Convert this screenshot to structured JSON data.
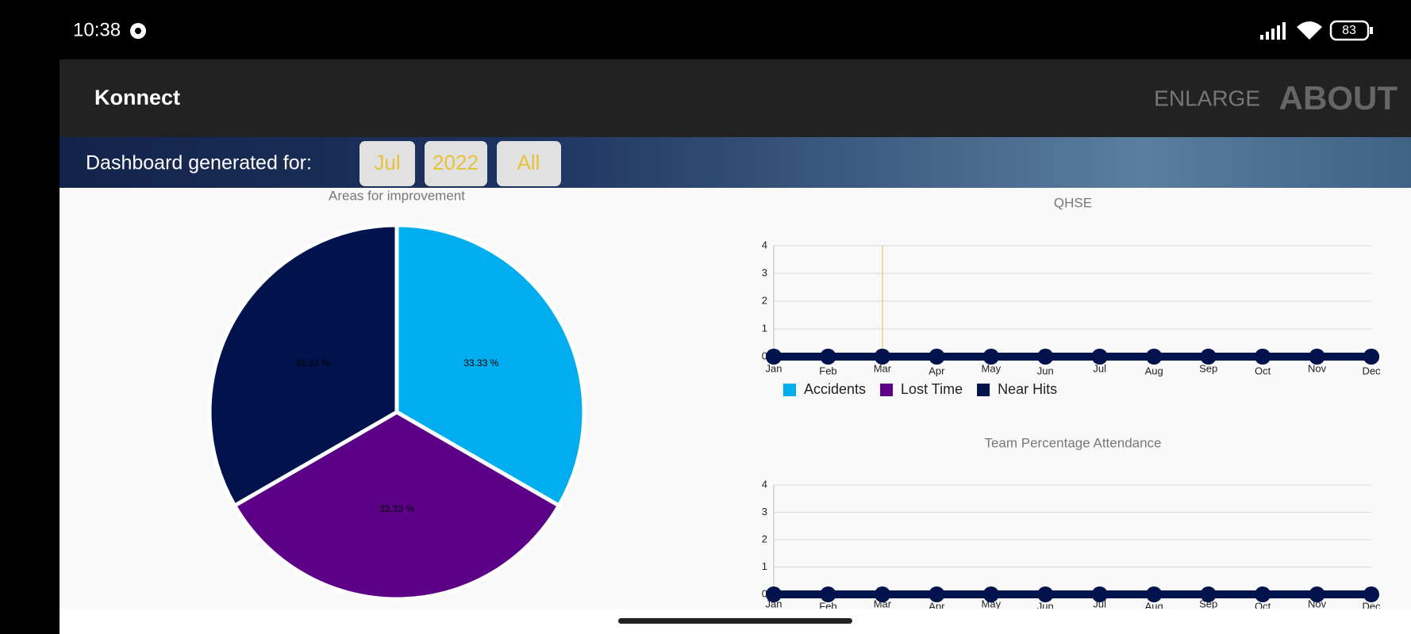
{
  "status_bar": {
    "time": "10:38",
    "battery": "83"
  },
  "app_bar": {
    "title": "Konnect",
    "actions": [
      "ENLARGE",
      "ABOUT"
    ]
  },
  "filter_bar": {
    "label": "Dashboard generated for:",
    "buttons": [
      "Jul",
      "2022",
      "All"
    ]
  },
  "chart_data": [
    {
      "type": "pie",
      "title": "Areas for improvement",
      "values": [
        33.33,
        33.33,
        33.33
      ],
      "value_labels": [
        "33.33 %",
        "33.33 %",
        "33.33 %"
      ],
      "colors": [
        "#00aeef",
        "#5c0087",
        "#00134d"
      ]
    },
    {
      "type": "line",
      "title": "QHSE",
      "categories": [
        "Jan",
        "Feb",
        "Mar",
        "Apr",
        "May",
        "Jun",
        "Jul",
        "Aug",
        "Sep",
        "Oct",
        "Nov",
        "Dec"
      ],
      "series": [
        {
          "name": "Accidents",
          "color": "#00aeef",
          "values": [
            0,
            0,
            0,
            0,
            0,
            0,
            0,
            0,
            0,
            0,
            0,
            0
          ]
        },
        {
          "name": "Lost Time",
          "color": "#5c0087",
          "values": [
            0,
            0,
            0,
            0,
            0,
            0,
            0,
            0,
            0,
            0,
            0,
            0
          ]
        },
        {
          "name": "Near Hits",
          "color": "#00134d",
          "values": [
            0,
            0,
            0,
            0,
            0,
            0,
            0,
            0,
            0,
            0,
            0,
            0
          ]
        }
      ],
      "ylim": [
        0,
        4
      ],
      "yticks": [
        0,
        1,
        2,
        3,
        4
      ],
      "grid": true,
      "highlight_category": "Mar",
      "highlight_color": "#f3c68c"
    },
    {
      "type": "line",
      "title": "Team Percentage Attendance",
      "categories": [
        "Jan",
        "Feb",
        "Mar",
        "Apr",
        "May",
        "Jun",
        "Jul",
        "Aug",
        "Sep",
        "Oct",
        "Nov",
        "Dec"
      ],
      "values": [
        0,
        0,
        0,
        0,
        0,
        0,
        0,
        0,
        0,
        0,
        0,
        0
      ],
      "color": "#00134d",
      "ylim": [
        0,
        4
      ],
      "yticks": [
        0,
        1,
        2,
        3,
        4
      ],
      "grid": true
    }
  ]
}
